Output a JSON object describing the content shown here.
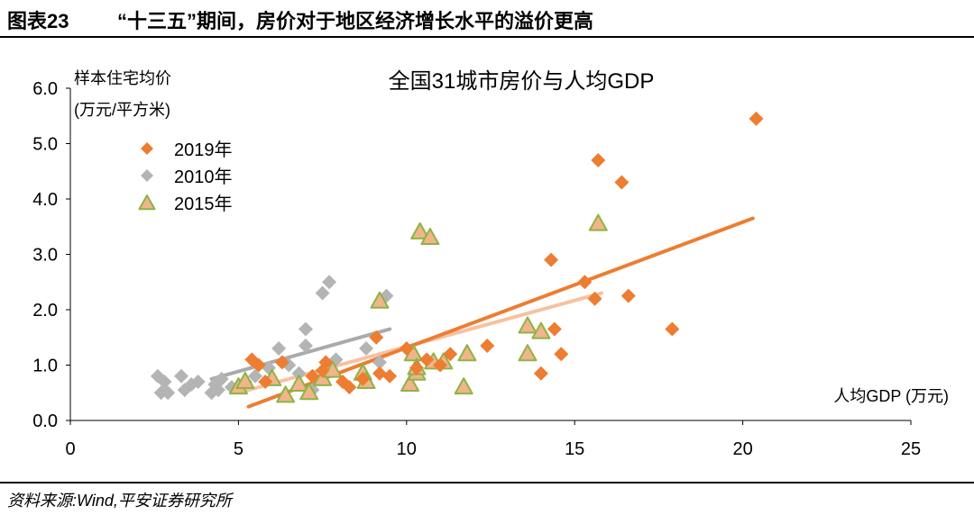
{
  "header": {
    "label": "图表23",
    "title": "“十三五”期间，房价对于地区经济增长水平的溢价更高"
  },
  "footer": {
    "source": "资料来源:Wind,平安证券研究所"
  },
  "colors": {
    "s2019": "#ed7d31",
    "s2010": "#b4b4b4",
    "s2015_fill": "#f2b48a",
    "s2015_stroke": "#8cb446",
    "trend2019": "#ed7d31",
    "trend2010": "#aaaaaa",
    "trend2015": "#f6c29e"
  },
  "chart_data": {
    "type": "scatter",
    "title": "全国31城市房价与人均GDP",
    "xlabel": "人均GDP (万元)",
    "ylabel_line1": "样本住宅均价",
    "ylabel_line2": "(万元/平方米)",
    "xlim": [
      0,
      25
    ],
    "ylim": [
      0,
      6
    ],
    "xticks": [
      0,
      5,
      10,
      15,
      20,
      25
    ],
    "xtick_labels": [
      "0",
      "5",
      "10",
      "15",
      "20",
      "25"
    ],
    "yticks": [
      0,
      1,
      2,
      3,
      4,
      5,
      6
    ],
    "ytick_labels": [
      "0.0",
      "1.0",
      "2.0",
      "3.0",
      "4.0",
      "5.0",
      "6.0"
    ],
    "legend": [
      "2019年",
      "2010年",
      "2015年"
    ],
    "series": [
      {
        "name": "2019年",
        "marker": "diamond",
        "points": [
          [
            5.4,
            1.1
          ],
          [
            5.6,
            1.0
          ],
          [
            5.8,
            0.7
          ],
          [
            6.3,
            1.05
          ],
          [
            7.2,
            0.8
          ],
          [
            7.5,
            0.9
          ],
          [
            7.6,
            1.05
          ],
          [
            8.1,
            0.7
          ],
          [
            8.3,
            0.6
          ],
          [
            8.7,
            0.75
          ],
          [
            9.1,
            1.5
          ],
          [
            9.2,
            0.85
          ],
          [
            9.5,
            0.8
          ],
          [
            10.0,
            1.3
          ],
          [
            10.3,
            0.95
          ],
          [
            10.6,
            1.1
          ],
          [
            11.0,
            1.0
          ],
          [
            11.3,
            1.2
          ],
          [
            12.4,
            1.35
          ],
          [
            14.0,
            0.85
          ],
          [
            14.3,
            2.9
          ],
          [
            14.4,
            1.65
          ],
          [
            14.6,
            1.2
          ],
          [
            15.3,
            2.5
          ],
          [
            15.6,
            2.2
          ],
          [
            15.7,
            4.7
          ],
          [
            16.4,
            4.3
          ],
          [
            16.6,
            2.25
          ],
          [
            17.9,
            1.65
          ],
          [
            20.4,
            5.45
          ]
        ],
        "trendline": [
          [
            5.3,
            0.25
          ],
          [
            20.3,
            3.65
          ]
        ]
      },
      {
        "name": "2010年",
        "marker": "diamond",
        "points": [
          [
            2.6,
            0.8
          ],
          [
            2.7,
            0.5
          ],
          [
            2.8,
            0.7
          ],
          [
            2.9,
            0.5
          ],
          [
            3.3,
            0.8
          ],
          [
            3.4,
            0.55
          ],
          [
            3.6,
            0.65
          ],
          [
            3.8,
            0.7
          ],
          [
            4.2,
            0.5
          ],
          [
            4.3,
            0.65
          ],
          [
            4.4,
            0.55
          ],
          [
            4.5,
            0.75
          ],
          [
            4.8,
            0.6
          ],
          [
            5.2,
            0.7
          ],
          [
            5.5,
            0.8
          ],
          [
            5.9,
            0.95
          ],
          [
            6.2,
            1.3
          ],
          [
            6.5,
            1.0
          ],
          [
            6.8,
            0.85
          ],
          [
            7.0,
            1.35
          ],
          [
            7.0,
            1.65
          ],
          [
            7.2,
            0.55
          ],
          [
            7.5,
            2.3
          ],
          [
            7.7,
            2.5
          ],
          [
            7.9,
            1.1
          ],
          [
            8.8,
            1.3
          ],
          [
            9.2,
            1.05
          ],
          [
            9.4,
            2.25
          ]
        ],
        "trendline": [
          [
            4.2,
            0.75
          ],
          [
            9.5,
            1.65
          ]
        ]
      },
      {
        "name": "2015年",
        "marker": "triangle",
        "points": [
          [
            5.0,
            0.6
          ],
          [
            5.2,
            0.7
          ],
          [
            6.0,
            0.75
          ],
          [
            6.4,
            0.45
          ],
          [
            6.8,
            0.65
          ],
          [
            7.1,
            0.5
          ],
          [
            7.5,
            0.75
          ],
          [
            7.8,
            0.9
          ],
          [
            8.7,
            0.85
          ],
          [
            8.8,
            0.7
          ],
          [
            9.2,
            2.15
          ],
          [
            10.1,
            0.65
          ],
          [
            10.2,
            1.2
          ],
          [
            10.3,
            0.85
          ],
          [
            10.3,
            0.95
          ],
          [
            10.4,
            3.4
          ],
          [
            10.7,
            3.3
          ],
          [
            10.8,
            1.05
          ],
          [
            11.1,
            1.05
          ],
          [
            11.7,
            0.6
          ],
          [
            11.8,
            1.2
          ],
          [
            13.6,
            1.7
          ],
          [
            13.6,
            1.2
          ],
          [
            14.0,
            1.6
          ],
          [
            15.7,
            3.55
          ]
        ],
        "trendline": [
          [
            5.0,
            0.5
          ],
          [
            15.8,
            2.3
          ]
        ]
      }
    ]
  }
}
